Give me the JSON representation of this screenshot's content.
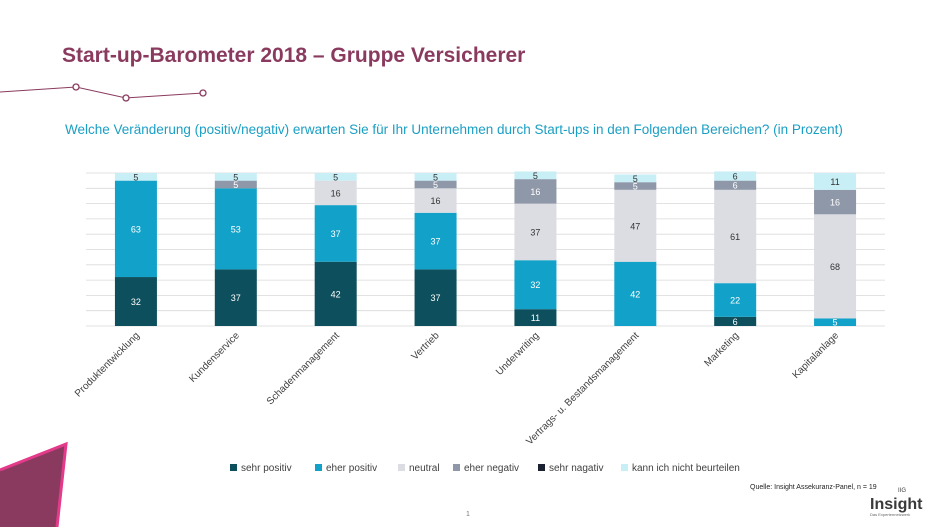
{
  "title": "Start-up-Barometer 2018 – Gruppe Versicherer",
  "subtitle": "Welche Veränderung (positiv/negativ) erwarten Sie für Ihr Unternehmen durch Start-ups in den Folgenden Bereichen? (in Prozent)",
  "source": "Quelle: Insight Assekuranz-Panel, n = 19",
  "page_number": "1",
  "logo": {
    "word": "Insight",
    "tagline": "Das Expertennetzwerk",
    "mark": "IIG"
  },
  "colors": {
    "sehr_positiv": "#0d4f5c",
    "eher_positiv": "#12a2c9",
    "neutral": "#dcdde3",
    "eher_negativ": "#8f98a8",
    "sehr_negativ": "#1b2333",
    "kann_nicht": "#c8eef6",
    "accent": "#8a3a5e",
    "pink": "#e33a8a"
  },
  "chart_data": {
    "type": "bar",
    "stacked": true,
    "categories": [
      "Produktentwicklung",
      "Kundenservice",
      "Schadenmanagement",
      "Vertrieb",
      "Underwriting",
      "Vertrags- u. Bestandsmanagement",
      "Marketing",
      "Kapitalanlage"
    ],
    "series": [
      {
        "name": "sehr positiv",
        "values": [
          32,
          37,
          42,
          37,
          11,
          0,
          6,
          0
        ]
      },
      {
        "name": "eher positiv",
        "values": [
          63,
          53,
          37,
          37,
          32,
          42,
          22,
          5
        ]
      },
      {
        "name": "neutral",
        "values": [
          0,
          0,
          16,
          16,
          37,
          47,
          61,
          68
        ]
      },
      {
        "name": "eher negativ",
        "values": [
          0,
          5,
          0,
          5,
          16,
          5,
          6,
          16
        ]
      },
      {
        "name": "sehr nagativ",
        "values": [
          0,
          0,
          0,
          0,
          0,
          0,
          0,
          0
        ]
      },
      {
        "name": "kann ich nicht beurteilen",
        "values": [
          5,
          5,
          5,
          5,
          5,
          5,
          6,
          11
        ]
      }
    ],
    "ylim": [
      0,
      100
    ],
    "legend_position": "bottom",
    "grid": true
  }
}
